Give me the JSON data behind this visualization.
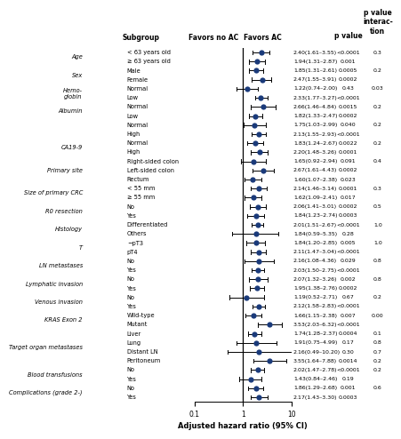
{
  "xlabel": "Adjusted hazard ratio (95% CI)",
  "header_favors_no_ac": "Favors no AC",
  "header_favors_ac": "Favors AC",
  "header_subgroup": "Subgroup",
  "header_pvalue": "p value",
  "header_pvalue_inter": "p value\ninterac-\ntion",
  "categories": [
    {
      "label": "< 63 years old",
      "hr": 2.4,
      "lo": 1.61,
      "hi": 3.55,
      "pval": "<0.0001",
      "pinter": "0.3"
    },
    {
      "label": "≥ 63 years old",
      "hr": 1.94,
      "lo": 1.31,
      "hi": 2.87,
      "pval": "0.001",
      "pinter": ""
    },
    {
      "label": "Male",
      "hr": 1.85,
      "lo": 1.31,
      "hi": 2.61,
      "pval": "0.0005",
      "pinter": "0.2"
    },
    {
      "label": "Female",
      "hr": 2.47,
      "lo": 1.55,
      "hi": 3.91,
      "pval": "0.0002",
      "pinter": ""
    },
    {
      "label": "Normal",
      "hr": 1.22,
      "lo": 0.74,
      "hi": 2.0,
      "pval": "0.43",
      "pinter": "0.03"
    },
    {
      "label": "Low",
      "hr": 2.33,
      "lo": 1.77,
      "hi": 3.27,
      "pval": "<0.0001",
      "pinter": ""
    },
    {
      "label": "Normal",
      "hr": 2.66,
      "lo": 1.46,
      "hi": 4.84,
      "pval": "0.0015",
      "pinter": "0.2"
    },
    {
      "label": "Low",
      "hr": 1.82,
      "lo": 1.33,
      "hi": 2.47,
      "pval": "0.0002",
      "pinter": ""
    },
    {
      "label": "Normal",
      "hr": 1.75,
      "lo": 1.03,
      "hi": 2.99,
      "pval": "0.040",
      "pinter": "0.2"
    },
    {
      "label": "High",
      "hr": 2.13,
      "lo": 1.55,
      "hi": 2.93,
      "pval": "<0.0001",
      "pinter": ""
    },
    {
      "label": "Normal",
      "hr": 1.83,
      "lo": 1.24,
      "hi": 2.67,
      "pval": "0.0022",
      "pinter": "0.2"
    },
    {
      "label": "High",
      "hr": 2.2,
      "lo": 1.48,
      "hi": 3.26,
      "pval": "0.0001",
      "pinter": ""
    },
    {
      "label": "Right-sided colon",
      "hr": 1.65,
      "lo": 0.92,
      "hi": 2.94,
      "pval": "0.091",
      "pinter": "0.4"
    },
    {
      "label": "Left-sided colon",
      "hr": 2.67,
      "lo": 1.61,
      "hi": 4.43,
      "pval": "0.0002",
      "pinter": ""
    },
    {
      "label": "Rectum",
      "hr": 1.6,
      "lo": 1.07,
      "hi": 2.38,
      "pval": "0.023",
      "pinter": ""
    },
    {
      "label": "< 55 mm",
      "hr": 2.14,
      "lo": 1.46,
      "hi": 3.14,
      "pval": "0.0001",
      "pinter": "0.3"
    },
    {
      "label": "≥ 55 mm",
      "hr": 1.62,
      "lo": 1.09,
      "hi": 2.41,
      "pval": "0.017",
      "pinter": ""
    },
    {
      "label": "No",
      "hr": 2.06,
      "lo": 1.41,
      "hi": 3.01,
      "pval": "0.0002",
      "pinter": "0.5"
    },
    {
      "label": "Yes",
      "hr": 1.84,
      "lo": 1.23,
      "hi": 2.74,
      "pval": "0.0003",
      "pinter": ""
    },
    {
      "label": "Differentiated",
      "hr": 2.01,
      "lo": 1.51,
      "hi": 2.67,
      "pval": "<0.0001",
      "pinter": "1.0"
    },
    {
      "label": "Others",
      "hr": 1.84,
      "lo": 0.59,
      "hi": 5.35,
      "pval": "0.28",
      "pinter": ""
    },
    {
      "label": "−pT3",
      "hr": 1.84,
      "lo": 1.2,
      "hi": 2.85,
      "pval": "0.005",
      "pinter": "1.0"
    },
    {
      "label": "pT4",
      "hr": 2.11,
      "lo": 1.47,
      "hi": 3.04,
      "pval": "<0.0001",
      "pinter": ""
    },
    {
      "label": "No",
      "hr": 2.16,
      "lo": 1.08,
      "hi": 4.36,
      "pval": "0.029",
      "pinter": "0.8"
    },
    {
      "label": "Yes",
      "hr": 2.03,
      "lo": 1.5,
      "hi": 2.75,
      "pval": "<0.0001",
      "pinter": ""
    },
    {
      "label": "No",
      "hr": 2.07,
      "lo": 1.32,
      "hi": 3.26,
      "pval": "0.002",
      "pinter": "0.8"
    },
    {
      "label": "Yes",
      "hr": 1.95,
      "lo": 1.38,
      "hi": 2.76,
      "pval": "0.0002",
      "pinter": ""
    },
    {
      "label": "No",
      "hr": 1.19,
      "lo": 0.52,
      "hi": 2.71,
      "pval": "0.67",
      "pinter": "0.2"
    },
    {
      "label": "Yes",
      "hr": 2.12,
      "lo": 1.58,
      "hi": 2.83,
      "pval": "<0.0001",
      "pinter": ""
    },
    {
      "label": "Wild-type",
      "hr": 1.66,
      "lo": 1.15,
      "hi": 2.38,
      "pval": "0.007",
      "pinter": "0.00"
    },
    {
      "label": "Mutant",
      "hr": 3.53,
      "lo": 2.03,
      "hi": 6.32,
      "pval": "<0.0001",
      "pinter": ""
    },
    {
      "label": "Liver",
      "hr": 1.74,
      "lo": 1.28,
      "hi": 2.37,
      "pval": "0.0004",
      "pinter": "0.1"
    },
    {
      "label": "Lung",
      "hr": 1.91,
      "lo": 0.75,
      "hi": 4.99,
      "pval": "0.17",
      "pinter": "0.8"
    },
    {
      "label": "Distant LN",
      "hr": 2.16,
      "lo": 0.49,
      "hi": 10.2,
      "pval": "0.30",
      "pinter": "0.7"
    },
    {
      "label": "Peritoneum",
      "hr": 3.55,
      "lo": 1.64,
      "hi": 7.88,
      "pval": "0.0014",
      "pinter": "0.2"
    },
    {
      "label": "No",
      "hr": 2.02,
      "lo": 1.47,
      "hi": 2.78,
      "pval": "<0.0001",
      "pinter": "0.2"
    },
    {
      "label": "Yes",
      "hr": 1.43,
      "lo": 0.84,
      "hi": 2.46,
      "pval": "0.19",
      "pinter": ""
    },
    {
      "label": "No",
      "hr": 1.86,
      "lo": 1.29,
      "hi": 2.68,
      "pval": "0.001",
      "pinter": "0.6"
    },
    {
      "label": "Yes",
      "hr": 2.17,
      "lo": 1.43,
      "hi": 3.3,
      "pval": "0.0003",
      "pinter": ""
    }
  ],
  "group_labels": [
    {
      "label": "Age",
      "row": 0,
      "span": 2
    },
    {
      "label": "Sex",
      "row": 2,
      "span": 2
    },
    {
      "label": "Hemo-\nglobin",
      "row": 4,
      "span": 2
    },
    {
      "label": "Albumin",
      "row": 6,
      "span": 2
    },
    {
      "label": "",
      "row": 8,
      "span": 2
    },
    {
      "label": "CA19-9",
      "row": 10,
      "span": 2
    },
    {
      "label": "Primary site",
      "row": 12,
      "span": 3
    },
    {
      "label": "Size of primary CRC",
      "row": 15,
      "span": 2
    },
    {
      "label": "R0 resection",
      "row": 17,
      "span": 2
    },
    {
      "label": "Histology",
      "row": 19,
      "span": 2
    },
    {
      "label": "T",
      "row": 21,
      "span": 2
    },
    {
      "label": "LN metastases",
      "row": 23,
      "span": 2
    },
    {
      "label": "Lymphatic invasion",
      "row": 25,
      "span": 2
    },
    {
      "label": "Venous invasion",
      "row": 27,
      "span": 2
    },
    {
      "label": "KRAS Exon 2",
      "row": 29,
      "span": 2
    },
    {
      "label": "Target organ metastases",
      "row": 31,
      "span": 4
    },
    {
      "label": "Blood transfusions",
      "row": 35,
      "span": 2
    },
    {
      "label": "Complications (grade 2-)",
      "row": 37,
      "span": 2
    }
  ],
  "dot_color": "#1a3a7a",
  "line_color": "#000000",
  "bg_color": "#ffffff",
  "xmin": 0.1,
  "xmax": 10
}
